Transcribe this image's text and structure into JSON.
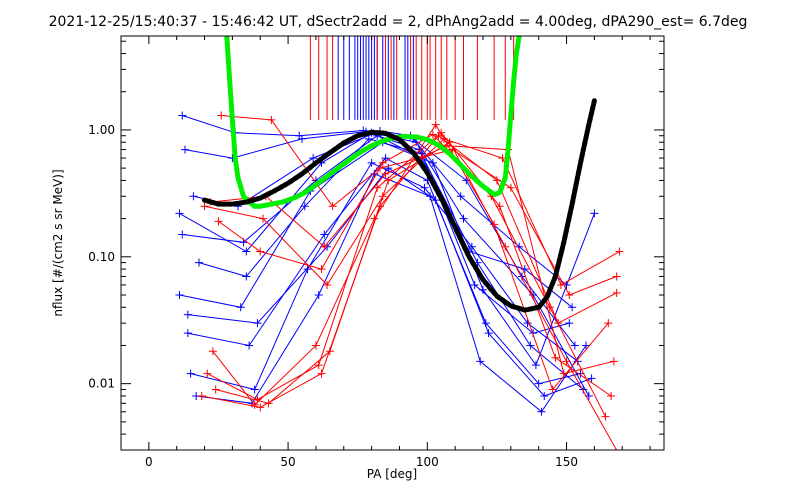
{
  "chart_data": {
    "type": "line",
    "title": "2021-12-25/15:40:37 - 15:46:42 UT, dSectr2add = 2, dPhAng2add = 4.00deg, dPA290_est=   6.7deg",
    "xlabel": "PA [deg]",
    "ylabel": "nflux [#/(cm2 s sr MeV)]",
    "xlim": [
      -10,
      185
    ],
    "ylim": [
      0.003,
      5.5
    ],
    "yscale": "log",
    "grid": false,
    "x_ticks": [
      0,
      50,
      100,
      150
    ],
    "x_tick_labels": [
      "0",
      "50",
      "100",
      "150"
    ],
    "y_ticks": [
      0.01,
      0.1,
      1.0
    ],
    "y_tick_labels": [
      "0.01",
      "0.10",
      "1.00"
    ],
    "colors": {
      "blue": "#0000ff",
      "red": "#ff0000",
      "green": "#00ee00",
      "black": "#000000",
      "axis": "#000000"
    },
    "vertical_marks": {
      "y_bottom": 1.2,
      "y_top": 5.5,
      "blue_x": [
        68,
        70,
        72,
        74,
        75,
        76,
        77,
        78,
        79,
        80,
        81,
        82,
        84,
        86,
        88,
        92,
        93,
        95
      ],
      "red_x": [
        58,
        61,
        64,
        66,
        82,
        85,
        87,
        89,
        94,
        96,
        98,
        100,
        101,
        103,
        105,
        107,
        110,
        113,
        118,
        124,
        128,
        131
      ]
    },
    "series": [
      {
        "color": "blue",
        "marker": "plus",
        "x": [
          11,
          35,
          62,
          80,
          98,
          115,
          135,
          152
        ],
        "y": [
          0.22,
          0.11,
          0.55,
          0.95,
          0.6,
          0.11,
          0.08,
          0.04
        ]
      },
      {
        "color": "blue",
        "marker": "plus",
        "x": [
          11,
          33,
          58,
          84,
          102,
          120,
          139,
          160
        ],
        "y": [
          0.05,
          0.04,
          0.33,
          0.8,
          0.55,
          0.055,
          0.014,
          0.22
        ]
      },
      {
        "color": "blue",
        "marker": "plus",
        "x": [
          12,
          34,
          60,
          82,
          97,
          118,
          137,
          156
        ],
        "y": [
          0.15,
          0.13,
          0.4,
          0.9,
          0.7,
          0.09,
          0.02,
          0.009
        ]
      },
      {
        "color": "blue",
        "marker": "plus",
        "x": [
          13,
          30,
          55,
          78,
          96,
          113,
          138,
          158
        ],
        "y": [
          0.7,
          0.6,
          0.85,
          0.97,
          0.8,
          0.2,
          0.05,
          0.008
        ]
      },
      {
        "color": "blue",
        "marker": "plus",
        "x": [
          14,
          36,
          63,
          85,
          100,
          121,
          140,
          155
        ],
        "y": [
          0.025,
          0.02,
          0.15,
          0.6,
          0.4,
          0.03,
          0.01,
          0.012
        ]
      },
      {
        "color": "blue",
        "marker": "plus",
        "x": [
          15,
          38,
          57,
          80,
          99,
          116,
          136,
          154
        ],
        "y": [
          0.012,
          0.009,
          0.08,
          0.55,
          0.35,
          0.12,
          0.03,
          0.015
        ]
      },
      {
        "color": "blue",
        "marker": "plus",
        "x": [
          16,
          32,
          59,
          83,
          94,
          112,
          133,
          150
        ],
        "y": [
          0.3,
          0.25,
          0.6,
          0.98,
          0.9,
          0.3,
          0.12,
          0.06
        ]
      },
      {
        "color": "blue",
        "marker": "plus",
        "x": [
          17,
          37,
          61,
          81,
          101,
          119,
          141,
          157
        ],
        "y": [
          0.008,
          0.007,
          0.05,
          0.45,
          0.3,
          0.015,
          0.006,
          0.02
        ]
      },
      {
        "color": "blue",
        "marker": "plus",
        "x": [
          18,
          35,
          56,
          79,
          98,
          117,
          138,
          151
        ],
        "y": [
          0.09,
          0.07,
          0.25,
          0.85,
          0.65,
          0.06,
          0.025,
          0.03
        ]
      },
      {
        "color": "blue",
        "marker": "plus",
        "x": [
          12,
          31,
          54,
          77,
          95,
          114,
          134,
          153
        ],
        "y": [
          1.3,
          0.95,
          0.9,
          0.99,
          0.85,
          0.4,
          0.07,
          0.02
        ]
      },
      {
        "color": "blue",
        "marker": "plus",
        "x": [
          14,
          39,
          64,
          86,
          103,
          122,
          142,
          159
        ],
        "y": [
          0.035,
          0.03,
          0.12,
          0.5,
          0.28,
          0.025,
          0.008,
          0.011
        ]
      },
      {
        "color": "red",
        "marker": "plus",
        "x": [
          19,
          40,
          62,
          83,
          104,
          125,
          147,
          168
        ],
        "y": [
          0.008,
          0.0065,
          0.012,
          0.25,
          0.9,
          0.4,
          0.03,
          0.052
        ]
      },
      {
        "color": "red",
        "marker": "plus",
        "x": [
          20,
          41,
          64,
          84,
          106,
          127,
          148,
          169
        ],
        "y": [
          0.25,
          0.2,
          0.06,
          0.3,
          0.85,
          0.6,
          0.06,
          0.11
        ]
      },
      {
        "color": "red",
        "marker": "plus",
        "x": [
          21,
          39,
          61,
          82,
          105,
          126,
          146,
          166
        ],
        "y": [
          0.012,
          0.0075,
          0.014,
          0.35,
          0.95,
          0.25,
          0.016,
          0.008
        ]
      },
      {
        "color": "red",
        "marker": "plus",
        "x": [
          22,
          42,
          63,
          85,
          107,
          129,
          149,
          167
        ],
        "y": [
          0.27,
          0.3,
          0.12,
          0.45,
          0.75,
          0.7,
          0.012,
          0.015
        ]
      },
      {
        "color": "red",
        "marker": "plus",
        "x": [
          23,
          38,
          60,
          81,
          103,
          124,
          145,
          165
        ],
        "y": [
          0.018,
          0.0068,
          0.02,
          0.2,
          1.1,
          0.18,
          0.009,
          0.03
        ]
      },
      {
        "color": "red",
        "marker": "plus",
        "x": [
          24,
          43,
          65,
          86,
          108,
          128,
          150,
          170
        ],
        "y": [
          0.009,
          0.007,
          0.018,
          0.4,
          0.8,
          0.12,
          0.015,
          0.0025
        ]
      },
      {
        "color": "red",
        "marker": "plus",
        "x": [
          25,
          40,
          62,
          84,
          102,
          123,
          144,
          164
        ],
        "y": [
          0.19,
          0.11,
          0.08,
          0.55,
          0.92,
          0.3,
          0.04,
          0.0055
        ]
      },
      {
        "color": "red",
        "marker": "plus",
        "x": [
          26,
          44,
          66,
          83,
          109,
          130,
          151,
          168
        ],
        "y": [
          1.3,
          1.2,
          0.25,
          0.5,
          0.7,
          0.35,
          0.05,
          0.07
        ]
      }
    ],
    "model_curves": [
      {
        "color": "green",
        "x": [
          28,
          29,
          30,
          31,
          32,
          34,
          36,
          38,
          40,
          44,
          48,
          52,
          56,
          60,
          64,
          68,
          72,
          76,
          80,
          84,
          88,
          92,
          96,
          100,
          104,
          108,
          112,
          116,
          120,
          124,
          126,
          128,
          129,
          130,
          131,
          132,
          133
        ],
        "y": [
          5.5,
          2.5,
          1.2,
          0.6,
          0.42,
          0.3,
          0.27,
          0.25,
          0.25,
          0.26,
          0.27,
          0.29,
          0.32,
          0.37,
          0.43,
          0.5,
          0.58,
          0.67,
          0.75,
          0.82,
          0.87,
          0.89,
          0.88,
          0.84,
          0.76,
          0.65,
          0.53,
          0.43,
          0.36,
          0.31,
          0.32,
          0.42,
          0.7,
          1.3,
          2.4,
          4.0,
          5.5
        ]
      },
      {
        "color": "black",
        "x": [
          20,
          25,
          30,
          35,
          40,
          45,
          50,
          55,
          60,
          65,
          70,
          75,
          80,
          85,
          90,
          95,
          100,
          105,
          110,
          115,
          120,
          125,
          130,
          135,
          140,
          143,
          146,
          149,
          152,
          155,
          158,
          160
        ],
        "y": [
          0.28,
          0.26,
          0.26,
          0.27,
          0.29,
          0.33,
          0.38,
          0.45,
          0.55,
          0.66,
          0.79,
          0.9,
          0.96,
          0.94,
          0.84,
          0.66,
          0.46,
          0.29,
          0.17,
          0.1,
          0.066,
          0.049,
          0.041,
          0.038,
          0.04,
          0.048,
          0.07,
          0.13,
          0.26,
          0.55,
          1.1,
          1.7
        ]
      }
    ]
  }
}
